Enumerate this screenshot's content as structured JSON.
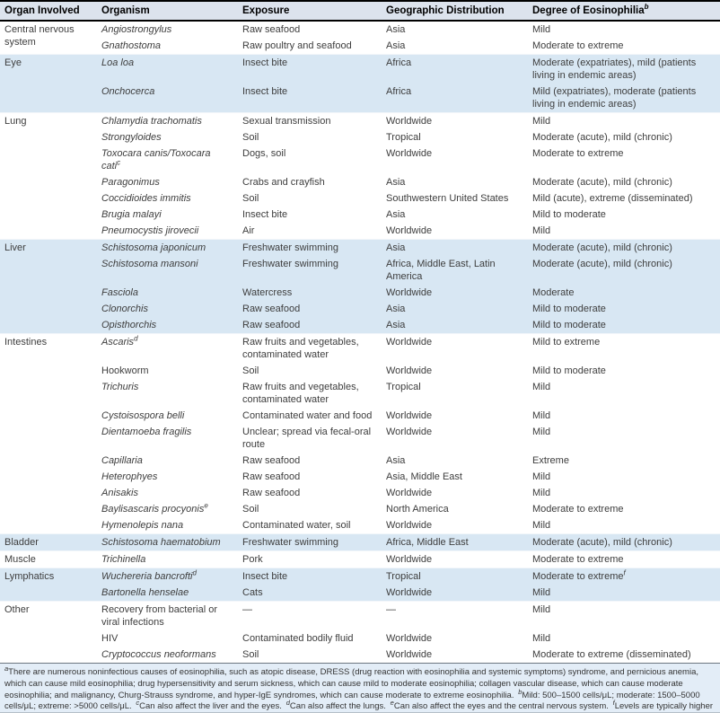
{
  "colors": {
    "header_bg": "#dce3ed",
    "shaded_row_bg": "#d8e7f3",
    "footnote_bg": "#e3edf7",
    "header_border": "#000000",
    "body_text": "#3d3d3d"
  },
  "table": {
    "columns": [
      {
        "label": "Organ Involved",
        "sup": ""
      },
      {
        "label": "Organism",
        "sup": ""
      },
      {
        "label": "Exposure",
        "sup": ""
      },
      {
        "label": "Geographic Distribution",
        "sup": ""
      },
      {
        "label": "Degree of Eosinophilia",
        "sup": "b"
      }
    ],
    "sections": [
      {
        "organ": "Central nervous system",
        "rows": [
          {
            "organism": "Angiostrongylus",
            "italic": true,
            "organism_sup": "",
            "exposure": "Raw seafood",
            "geographic": "Asia",
            "degree": "Mild",
            "degree_sup": ""
          },
          {
            "organism": "Gnathostoma",
            "italic": true,
            "organism_sup": "",
            "exposure": "Raw poultry and seafood",
            "geographic": "Asia",
            "degree": "Moderate to extreme",
            "degree_sup": ""
          }
        ]
      },
      {
        "organ": "Eye",
        "rows": [
          {
            "organism": "Loa loa",
            "italic": true,
            "organism_sup": "",
            "exposure": "Insect bite",
            "geographic": "Africa",
            "degree": "Moderate (expatriates), mild (patients living in endemic areas)",
            "degree_sup": ""
          },
          {
            "organism": "Onchocerca",
            "italic": true,
            "organism_sup": "",
            "exposure": "Insect bite",
            "geographic": "Africa",
            "degree": "Mild (expatriates), moderate (patients living in endemic areas)",
            "degree_sup": ""
          }
        ]
      },
      {
        "organ": "Lung",
        "rows": [
          {
            "organism": "Chlamydia trachomatis",
            "italic": true,
            "organism_sup": "",
            "exposure": "Sexual transmission",
            "geographic": "Worldwide",
            "degree": "Mild",
            "degree_sup": ""
          },
          {
            "organism": "Strongyloides",
            "italic": true,
            "organism_sup": "",
            "exposure": "Soil",
            "geographic": "Tropical",
            "degree": "Moderate (acute), mild (chronic)",
            "degree_sup": ""
          },
          {
            "organism": "Toxocara canis/Toxocara cati",
            "italic": true,
            "organism_sup": "c",
            "exposure": "Dogs, soil",
            "geographic": "Worldwide",
            "degree": "Moderate to extreme",
            "degree_sup": ""
          },
          {
            "organism": "Paragonimus",
            "italic": true,
            "organism_sup": "",
            "exposure": "Crabs and crayfish",
            "geographic": "Asia",
            "degree": "Moderate (acute), mild (chronic)",
            "degree_sup": ""
          },
          {
            "organism": "Coccidioides immitis",
            "italic": true,
            "organism_sup": "",
            "exposure": "Soil",
            "geographic": "Southwestern United States",
            "degree": "Mild (acute), extreme (disseminated)",
            "degree_sup": ""
          },
          {
            "organism": "Brugia malayi",
            "italic": true,
            "organism_sup": "",
            "exposure": "Insect bite",
            "geographic": "Asia",
            "degree": "Mild to moderate",
            "degree_sup": ""
          },
          {
            "organism": "Pneumocystis jirovecii",
            "italic": true,
            "organism_sup": "",
            "exposure": "Air",
            "geographic": "Worldwide",
            "degree": "Mild",
            "degree_sup": ""
          }
        ]
      },
      {
        "organ": "Liver",
        "rows": [
          {
            "organism": "Schistosoma japonicum",
            "italic": true,
            "organism_sup": "",
            "exposure": "Freshwater swimming",
            "geographic": "Asia",
            "degree": "Moderate (acute), mild (chronic)",
            "degree_sup": ""
          },
          {
            "organism": "Schistosoma mansoni",
            "italic": true,
            "organism_sup": "",
            "exposure": "Freshwater swimming",
            "geographic": "Africa, Middle East, Latin America",
            "degree": "Moderate (acute), mild (chronic)",
            "degree_sup": ""
          },
          {
            "organism": "Fasciola",
            "italic": true,
            "organism_sup": "",
            "exposure": "Watercress",
            "geographic": "Worldwide",
            "degree": "Moderate",
            "degree_sup": ""
          },
          {
            "organism": "Clonorchis",
            "italic": true,
            "organism_sup": "",
            "exposure": "Raw seafood",
            "geographic": "Asia",
            "degree": "Mild to moderate",
            "degree_sup": ""
          },
          {
            "organism": "Opisthorchis",
            "italic": true,
            "organism_sup": "",
            "exposure": "Raw seafood",
            "geographic": "Asia",
            "degree": "Mild to moderate",
            "degree_sup": ""
          }
        ]
      },
      {
        "organ": "Intestines",
        "rows": [
          {
            "organism": "Ascaris",
            "italic": true,
            "organism_sup": "d",
            "exposure": "Raw fruits and vegetables, contaminated water",
            "geographic": "Worldwide",
            "degree": "Mild to extreme",
            "degree_sup": ""
          },
          {
            "organism": "Hookworm",
            "italic": false,
            "organism_sup": "",
            "exposure": "Soil",
            "geographic": "Worldwide",
            "degree": "Mild to moderate",
            "degree_sup": ""
          },
          {
            "organism": "Trichuris",
            "italic": true,
            "organism_sup": "",
            "exposure": "Raw fruits and vegetables, contaminated water",
            "geographic": "Tropical",
            "degree": "Mild",
            "degree_sup": ""
          },
          {
            "organism": "Cystoisospora belli",
            "italic": true,
            "organism_sup": "",
            "exposure": "Contaminated water and food",
            "geographic": "Worldwide",
            "degree": "Mild",
            "degree_sup": ""
          },
          {
            "organism": "Dientamoeba fragilis",
            "italic": true,
            "organism_sup": "",
            "exposure": "Unclear; spread via fecal-oral route",
            "geographic": "Worldwide",
            "degree": "Mild",
            "degree_sup": ""
          },
          {
            "organism": "Capillaria",
            "italic": true,
            "organism_sup": "",
            "exposure": "Raw seafood",
            "geographic": "Asia",
            "degree": "Extreme",
            "degree_sup": ""
          },
          {
            "organism": "Heterophyes",
            "italic": true,
            "organism_sup": "",
            "exposure": "Raw seafood",
            "geographic": "Asia, Middle East",
            "degree": "Mild",
            "degree_sup": ""
          },
          {
            "organism": "Anisakis",
            "italic": true,
            "organism_sup": "",
            "exposure": "Raw seafood",
            "geographic": "Worldwide",
            "degree": "Mild",
            "degree_sup": ""
          },
          {
            "organism": "Baylisascaris procyonis",
            "italic": true,
            "organism_sup": "e",
            "exposure": "Soil",
            "geographic": "North America",
            "degree": "Moderate to extreme",
            "degree_sup": ""
          },
          {
            "organism": "Hymenolepis nana",
            "italic": true,
            "organism_sup": "",
            "exposure": "Contaminated water, soil",
            "geographic": "Worldwide",
            "degree": "Mild",
            "degree_sup": ""
          }
        ]
      },
      {
        "organ": "Bladder",
        "rows": [
          {
            "organism": "Schistosoma haematobium",
            "italic": true,
            "organism_sup": "",
            "exposure": "Freshwater swimming",
            "geographic": "Africa, Middle East",
            "degree": "Moderate (acute), mild (chronic)",
            "degree_sup": ""
          }
        ]
      },
      {
        "organ": "Muscle",
        "rows": [
          {
            "organism": "Trichinella",
            "italic": true,
            "organism_sup": "",
            "exposure": "Pork",
            "geographic": "Worldwide",
            "degree": "Moderate to extreme",
            "degree_sup": ""
          }
        ]
      },
      {
        "organ": "Lymphatics",
        "rows": [
          {
            "organism": "Wuchereria bancrofti",
            "italic": true,
            "organism_sup": "d",
            "exposure": "Insect bite",
            "geographic": "Tropical",
            "degree": "Moderate to extreme",
            "degree_sup": "f"
          },
          {
            "organism": "Bartonella henselae",
            "italic": true,
            "organism_sup": "",
            "exposure": "Cats",
            "geographic": "Worldwide",
            "degree": "Mild",
            "degree_sup": ""
          }
        ]
      },
      {
        "organ": "Other",
        "rows": [
          {
            "organism": "Recovery from bacterial or viral infections",
            "italic": false,
            "organism_sup": "",
            "exposure": "—",
            "geographic": "—",
            "degree": "Mild",
            "degree_sup": ""
          },
          {
            "organism": "HIV",
            "italic": false,
            "organism_sup": "",
            "exposure": "Contaminated bodily fluid",
            "geographic": "Worldwide",
            "degree": "Mild",
            "degree_sup": ""
          },
          {
            "organism": "Cryptococcus neoformans",
            "italic": true,
            "organism_sup": "",
            "exposure": "Soil",
            "geographic": "Worldwide",
            "degree": "Moderate to extreme (disseminated)",
            "degree_sup": ""
          }
        ]
      }
    ]
  },
  "footnote": {
    "notes": [
      {
        "sup": "a",
        "text": "There are numerous noninfectious causes of eosinophilia, such as atopic disease, DRESS (drug reaction with eosinophilia and systemic symptoms) syndrome, and pernicious anemia, which can cause mild eosinophilia; drug hypersensitivity and serum sickness, which can cause mild to moderate eosinophilia; collagen vascular disease, which can cause moderate eosinophilia; and malignancy, Churg-Strauss syndrome, and hyper-IgE syndromes, which can cause moderate to extreme eosinophilia."
      },
      {
        "sup": "b",
        "text": "Mild: 500–1500 cells/μL; moderate: 1500–5000 cells/μL; extreme: >5000 cells/μL."
      },
      {
        "sup": "c",
        "text": "Can also affect the liver and the eyes."
      },
      {
        "sup": "d",
        "text": "Can also affect the lungs."
      },
      {
        "sup": "e",
        "text": "Can also affect the eyes and the central nervous system."
      },
      {
        "sup": "f",
        "text": "Levels are typically higher with pulmonary infections."
      }
    ]
  }
}
